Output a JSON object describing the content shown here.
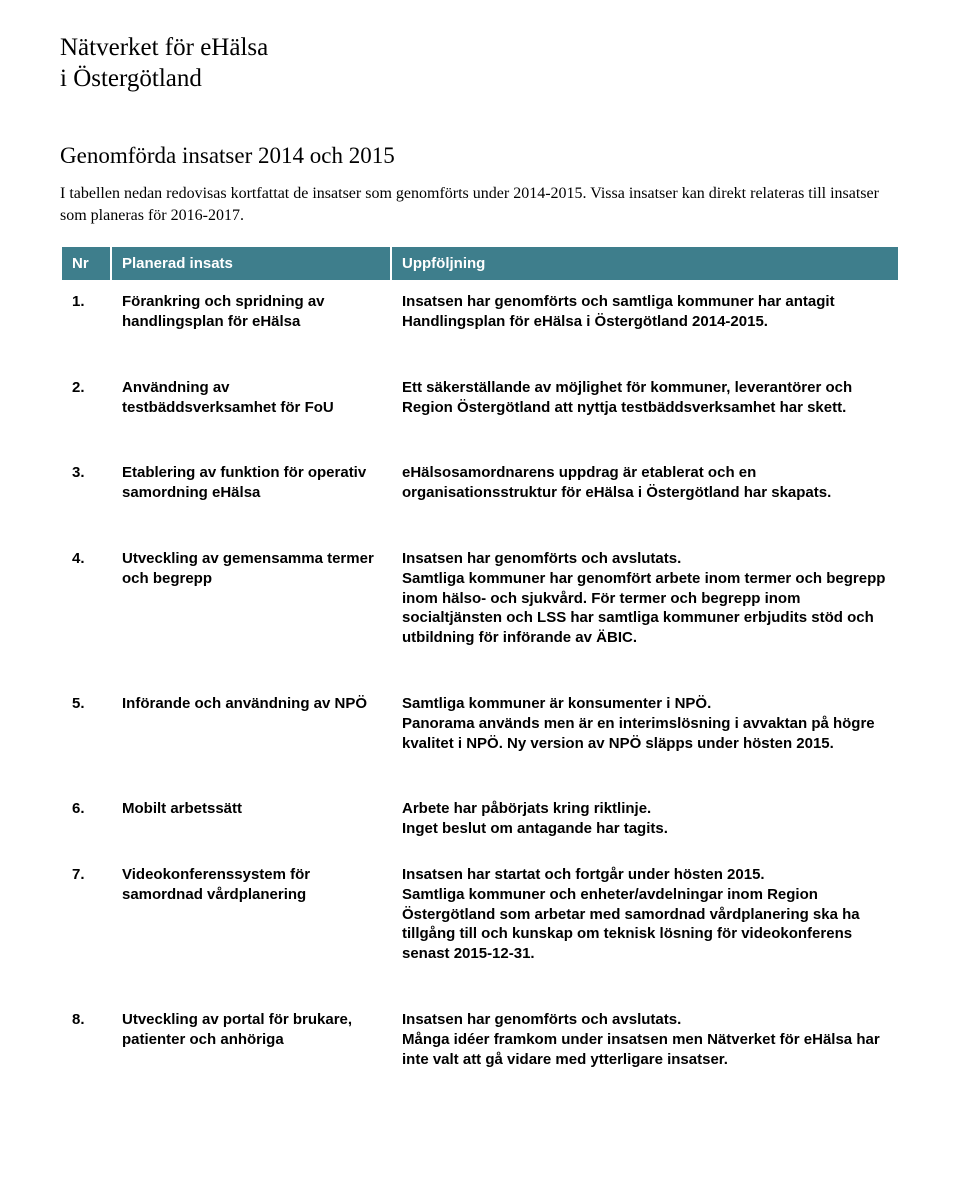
{
  "header": {
    "line1": "Nätverket för eHälsa",
    "line2": "i Östergötland"
  },
  "section_title": "Genomförda insatser 2014 och 2015",
  "intro": "I tabellen nedan redovisas kortfattat de insatser som genomförts under 2014-2015. Vissa insatser kan direkt relateras till insatser som planeras för 2016-2017.",
  "table": {
    "header_bg": "#3e7e8c",
    "header_fg": "#ffffff",
    "border_color": "#ffffff",
    "body_bg": "#ffffff",
    "body_fg": "#000000",
    "font_size_header": 15,
    "font_size_body": 15,
    "col_widths": {
      "nr": 50,
      "insats": 280
    },
    "columns": [
      "Nr",
      "Planerad insats",
      "Uppföljning"
    ],
    "rows": [
      {
        "nr": "1.",
        "insats": "Förankring och spridning av handlingsplan för eHälsa",
        "uppf": "Insatsen har genomförts och samtliga kommuner har antagit Handlingsplan för eHälsa i Östergötland 2014-2015."
      },
      {
        "nr": "2.",
        "insats": "Användning av testbäddsverksamhet för FoU",
        "uppf": "Ett säkerställande av möjlighet för kommuner, leverantörer och Region Östergötland att nyttja testbäddsverksamhet har skett."
      },
      {
        "nr": "3.",
        "insats": "Etablering av funktion för operativ samordning eHälsa",
        "uppf": "eHälsosamordnarens uppdrag är etablerat och en organisationsstruktur för eHälsa i Östergötland har skapats."
      },
      {
        "nr": "4.",
        "insats": "Utveckling av gemensamma termer och begrepp",
        "uppf": "Insatsen har genomförts och avslutats.\nSamtliga kommuner har genomfört arbete inom termer och begrepp inom hälso- och sjukvård. För termer och begrepp inom socialtjänsten och LSS har samtliga kommuner erbjudits stöd och utbildning för införande av ÄBIC."
      },
      {
        "nr": "5.",
        "insats": "Införande och användning av NPÖ",
        "uppf": "Samtliga kommuner är konsumenter i NPÖ.\nPanorama används men är en interimslösning i avvaktan på högre kvalitet i NPÖ. Ny version av NPÖ släpps under hösten 2015."
      },
      {
        "nr": "6.",
        "insats": "Mobilt arbetssätt",
        "uppf": "Arbete har påbörjats kring riktlinje.\nInget beslut om antagande har tagits."
      },
      {
        "nr": "7.",
        "insats": "Videokonferenssystem för samordnad vårdplanering",
        "uppf": "Insatsen har startat och fortgår under hösten 2015.\nSamtliga kommuner och enheter/avdelningar inom Region Östergötland som arbetar med samordnad vårdplanering ska ha tillgång till och kunskap om teknisk lösning för videokonferens senast 2015-12-31."
      },
      {
        "nr": "8.",
        "insats": "Utveckling av portal för brukare, patienter och anhöriga",
        "uppf": "Insatsen har genomförts och avslutats.\nMånga idéer framkom under insatsen men Nätverket för eHälsa har inte valt att gå vidare med ytterligare insatser."
      }
    ]
  }
}
